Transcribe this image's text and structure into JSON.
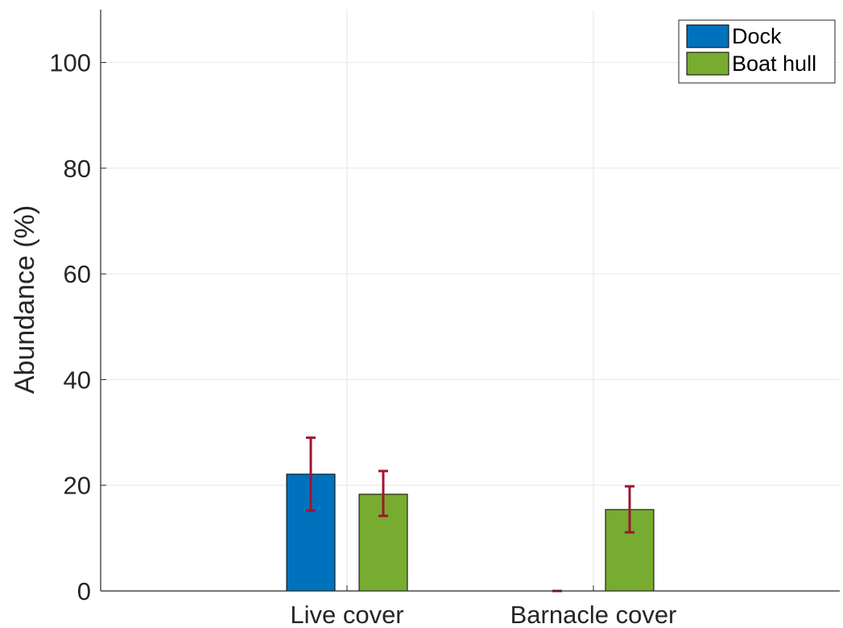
{
  "chart_data": {
    "type": "bar",
    "title": "",
    "xlabel": "",
    "ylabel": "Abundance (%)",
    "ylim": [
      0,
      110
    ],
    "yticks": [
      0,
      20,
      40,
      60,
      80,
      100
    ],
    "grid": true,
    "legend_position": "top-right",
    "categories": [
      "Live cover",
      "Barnacle cover"
    ],
    "series": [
      {
        "name": "Dock",
        "color": "#0072bd",
        "values": [
          22.1,
          0
        ],
        "error_low": [
          15.2,
          0
        ],
        "error_high": [
          29.0,
          0
        ]
      },
      {
        "name": "Boat hull",
        "color": "#77ac30",
        "values": [
          18.3,
          15.4
        ],
        "error_low": [
          14.2,
          11.1
        ],
        "error_high": [
          22.7,
          19.8
        ]
      }
    ],
    "errorbar_color": "#a2142f"
  }
}
